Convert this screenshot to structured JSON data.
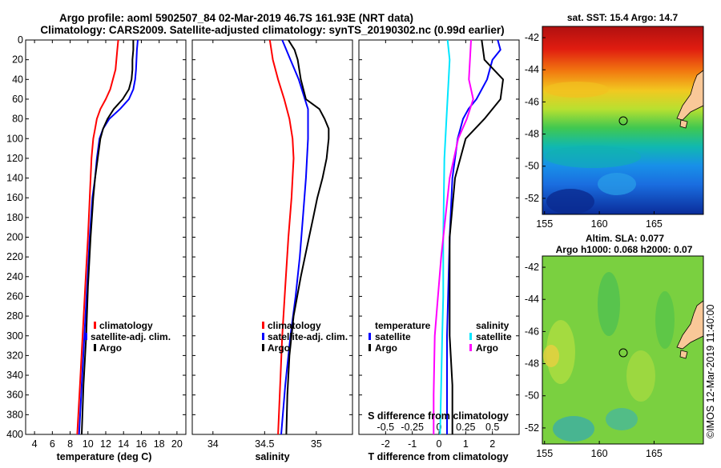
{
  "header": {
    "title_line1": "Argo profile: aoml 5902507_84 02-Mar-2019 46.7S 161.93E (NRT data)",
    "title_line2": "Climatology: CARS2009. Satellite-adjusted climatology: synTS_20190302.nc (0.99d earlier)"
  },
  "maps": {
    "sst_title": "sat. SST: 15.4 Argo: 14.7",
    "sla_title_line1": "Altim. SLA: 0.077",
    "sla_title_line2": "Argo h1000: 0.068 h2000: 0.07",
    "lat_ticks": [
      "-42",
      "-44",
      "-46",
      "-48",
      "-50",
      "-52"
    ],
    "lon_ticks": [
      "155",
      "160",
      "165"
    ],
    "argo_position": {
      "lon": 161.93,
      "lat": -46.7
    },
    "colors": {
      "land": "#f9c898",
      "marker": "#000000"
    }
  },
  "credit": "©IMOS 12-Mar-2019 11:40:00",
  "chart_data": [
    {
      "type": "line",
      "id": "temperature",
      "xlabel": "temperature (deg C)",
      "ylabel": "",
      "xlim": [
        3,
        21
      ],
      "ylim": [
        400,
        0
      ],
      "xticks": [
        "4",
        "6",
        "8",
        "10",
        "12",
        "14",
        "16",
        "18",
        "20"
      ],
      "xtick_values": [
        4,
        6,
        8,
        10,
        12,
        14,
        16,
        18,
        20
      ],
      "yticks": [
        "0",
        "20",
        "40",
        "60",
        "80",
        "100",
        "120",
        "140",
        "160",
        "180",
        "200",
        "220",
        "240",
        "260",
        "280",
        "300",
        "320",
        "340",
        "360",
        "380",
        "400"
      ],
      "ytick_values": [
        0,
        20,
        40,
        60,
        80,
        100,
        120,
        140,
        160,
        180,
        200,
        220,
        240,
        260,
        280,
        300,
        320,
        340,
        360,
        380,
        400
      ],
      "legend": [
        "climatology",
        "satellite-adj. clim.",
        "Argo"
      ],
      "series": [
        {
          "name": "climatology",
          "color": "#ff0000",
          "depth": [
            0,
            10,
            30,
            50,
            60,
            70,
            80,
            90,
            100,
            120,
            140,
            160,
            200,
            250,
            300,
            350,
            400
          ],
          "values": [
            13.4,
            13.3,
            13.1,
            12.5,
            12.0,
            11.4,
            11.0,
            10.8,
            10.6,
            10.4,
            10.3,
            10.2,
            10.0,
            9.7,
            9.4,
            9.1,
            8.8
          ]
        },
        {
          "name": "satellite-adj. clim.",
          "color": "#0000ff",
          "depth": [
            0,
            10,
            30,
            40,
            50,
            60,
            70,
            80,
            90,
            100,
            120,
            140,
            160,
            200,
            250,
            300,
            350,
            400
          ],
          "values": [
            15.6,
            15.5,
            15.4,
            15.3,
            15.1,
            14.6,
            13.6,
            12.4,
            11.7,
            11.3,
            11.0,
            10.8,
            10.5,
            10.2,
            9.9,
            9.6,
            9.3,
            9.0
          ]
        },
        {
          "name": "Argo",
          "color": "#000000",
          "depth": [
            0,
            10,
            20,
            30,
            40,
            50,
            60,
            70,
            80,
            90,
            100,
            120,
            140,
            160,
            200,
            250,
            300,
            350,
            400
          ],
          "values": [
            15.1,
            15.1,
            15.0,
            15.0,
            14.9,
            14.6,
            13.9,
            12.9,
            12.2,
            11.7,
            11.4,
            11.1,
            10.8,
            10.6,
            10.3,
            10.0,
            9.8,
            9.5,
            9.3
          ]
        }
      ]
    },
    {
      "type": "line",
      "id": "salinity",
      "xlabel": "salinity",
      "ylabel": "",
      "xlim": [
        33.8,
        35.35
      ],
      "ylim": [
        400,
        0
      ],
      "xticks": [
        "34",
        "34.5",
        "35"
      ],
      "xtick_values": [
        34,
        34.5,
        35
      ],
      "legend": [
        "climatology",
        "satellite-adj. clim.",
        "Argo"
      ],
      "series": [
        {
          "name": "climatology",
          "color": "#ff0000",
          "depth": [
            0,
            20,
            40,
            60,
            80,
            100,
            120,
            160,
            200,
            250,
            300,
            350,
            400
          ],
          "values": [
            34.55,
            34.58,
            34.63,
            34.69,
            34.74,
            34.77,
            34.78,
            34.76,
            34.73,
            34.7,
            34.67,
            34.65,
            34.63
          ]
        },
        {
          "name": "satellite-adj. clim.",
          "color": "#0000ff",
          "depth": [
            0,
            20,
            40,
            60,
            70,
            80,
            100,
            140,
            180,
            220,
            260,
            300,
            350,
            400
          ],
          "values": [
            34.67,
            34.75,
            34.83,
            34.89,
            34.92,
            34.92,
            34.92,
            34.9,
            34.87,
            34.84,
            34.8,
            34.75,
            34.7,
            34.66
          ]
        },
        {
          "name": "Argo",
          "color": "#000000",
          "depth": [
            0,
            10,
            20,
            40,
            60,
            70,
            80,
            90,
            100,
            120,
            140,
            160,
            180,
            200,
            240,
            280,
            320,
            360,
            400
          ],
          "values": [
            34.73,
            34.79,
            34.82,
            34.85,
            34.9,
            35.03,
            35.08,
            35.12,
            35.12,
            35.1,
            35.06,
            35.01,
            34.97,
            34.93,
            34.85,
            34.78,
            34.74,
            34.72,
            34.71
          ]
        }
      ]
    },
    {
      "type": "line",
      "id": "differences",
      "xlabel": "T difference from climatology",
      "xlabel_top": "S difference from climatology",
      "ylabel": "",
      "xlim": [
        -3,
        3
      ],
      "ylim": [
        400,
        0
      ],
      "xticks": [
        "-2",
        "-1",
        "0",
        "1",
        "2"
      ],
      "xtick_values": [
        -2,
        -1,
        0,
        1,
        2
      ],
      "s_xticks": [
        "-0.5",
        "-0.25",
        "0",
        "0.25",
        "0.5"
      ],
      "s_xtick_values": [
        -0.5,
        -0.25,
        0,
        0.25,
        0.5
      ],
      "legend_temperature_title": "temperature",
      "legend_salinity_title": "salinity",
      "legend": [
        "satellite",
        "Argo",
        "satellite",
        "Argo"
      ],
      "series": [
        {
          "name": "temperature satellite",
          "color": "#0000ff",
          "depth": [
            0,
            10,
            20,
            40,
            60,
            70,
            80,
            100,
            140,
            200,
            300,
            400
          ],
          "values": [
            2.2,
            2.3,
            2.0,
            1.8,
            1.4,
            1.1,
            0.9,
            0.7,
            0.5,
            0.4,
            0.3,
            0.3
          ]
        },
        {
          "name": "temperature Argo",
          "color": "#000000",
          "depth": [
            0,
            20,
            40,
            60,
            80,
            100,
            140,
            200,
            260,
            300,
            350,
            400
          ],
          "values": [
            1.6,
            1.7,
            2.4,
            2.3,
            1.7,
            1.0,
            0.6,
            0.4,
            0.4,
            0.4,
            0.5,
            0.5
          ]
        },
        {
          "name": "salinity satellite",
          "color": "#00e6ff",
          "depth": [
            0,
            20,
            40,
            80,
            120,
            200,
            260,
            300,
            350,
            400
          ],
          "values": [
            0.08,
            0.1,
            0.09,
            0.07,
            0.05,
            0.04,
            0.04,
            0.03,
            0.02,
            0.01
          ]
        },
        {
          "name": "salinity Argo",
          "color": "#ff00ff",
          "depth": [
            0,
            40,
            60,
            80,
            100,
            140,
            180,
            220,
            260,
            300,
            360,
            400
          ],
          "values": [
            0.3,
            0.28,
            0.32,
            0.26,
            0.18,
            0.1,
            0.06,
            0.02,
            -0.01,
            -0.04,
            -0.05,
            -0.05
          ]
        }
      ]
    }
  ]
}
